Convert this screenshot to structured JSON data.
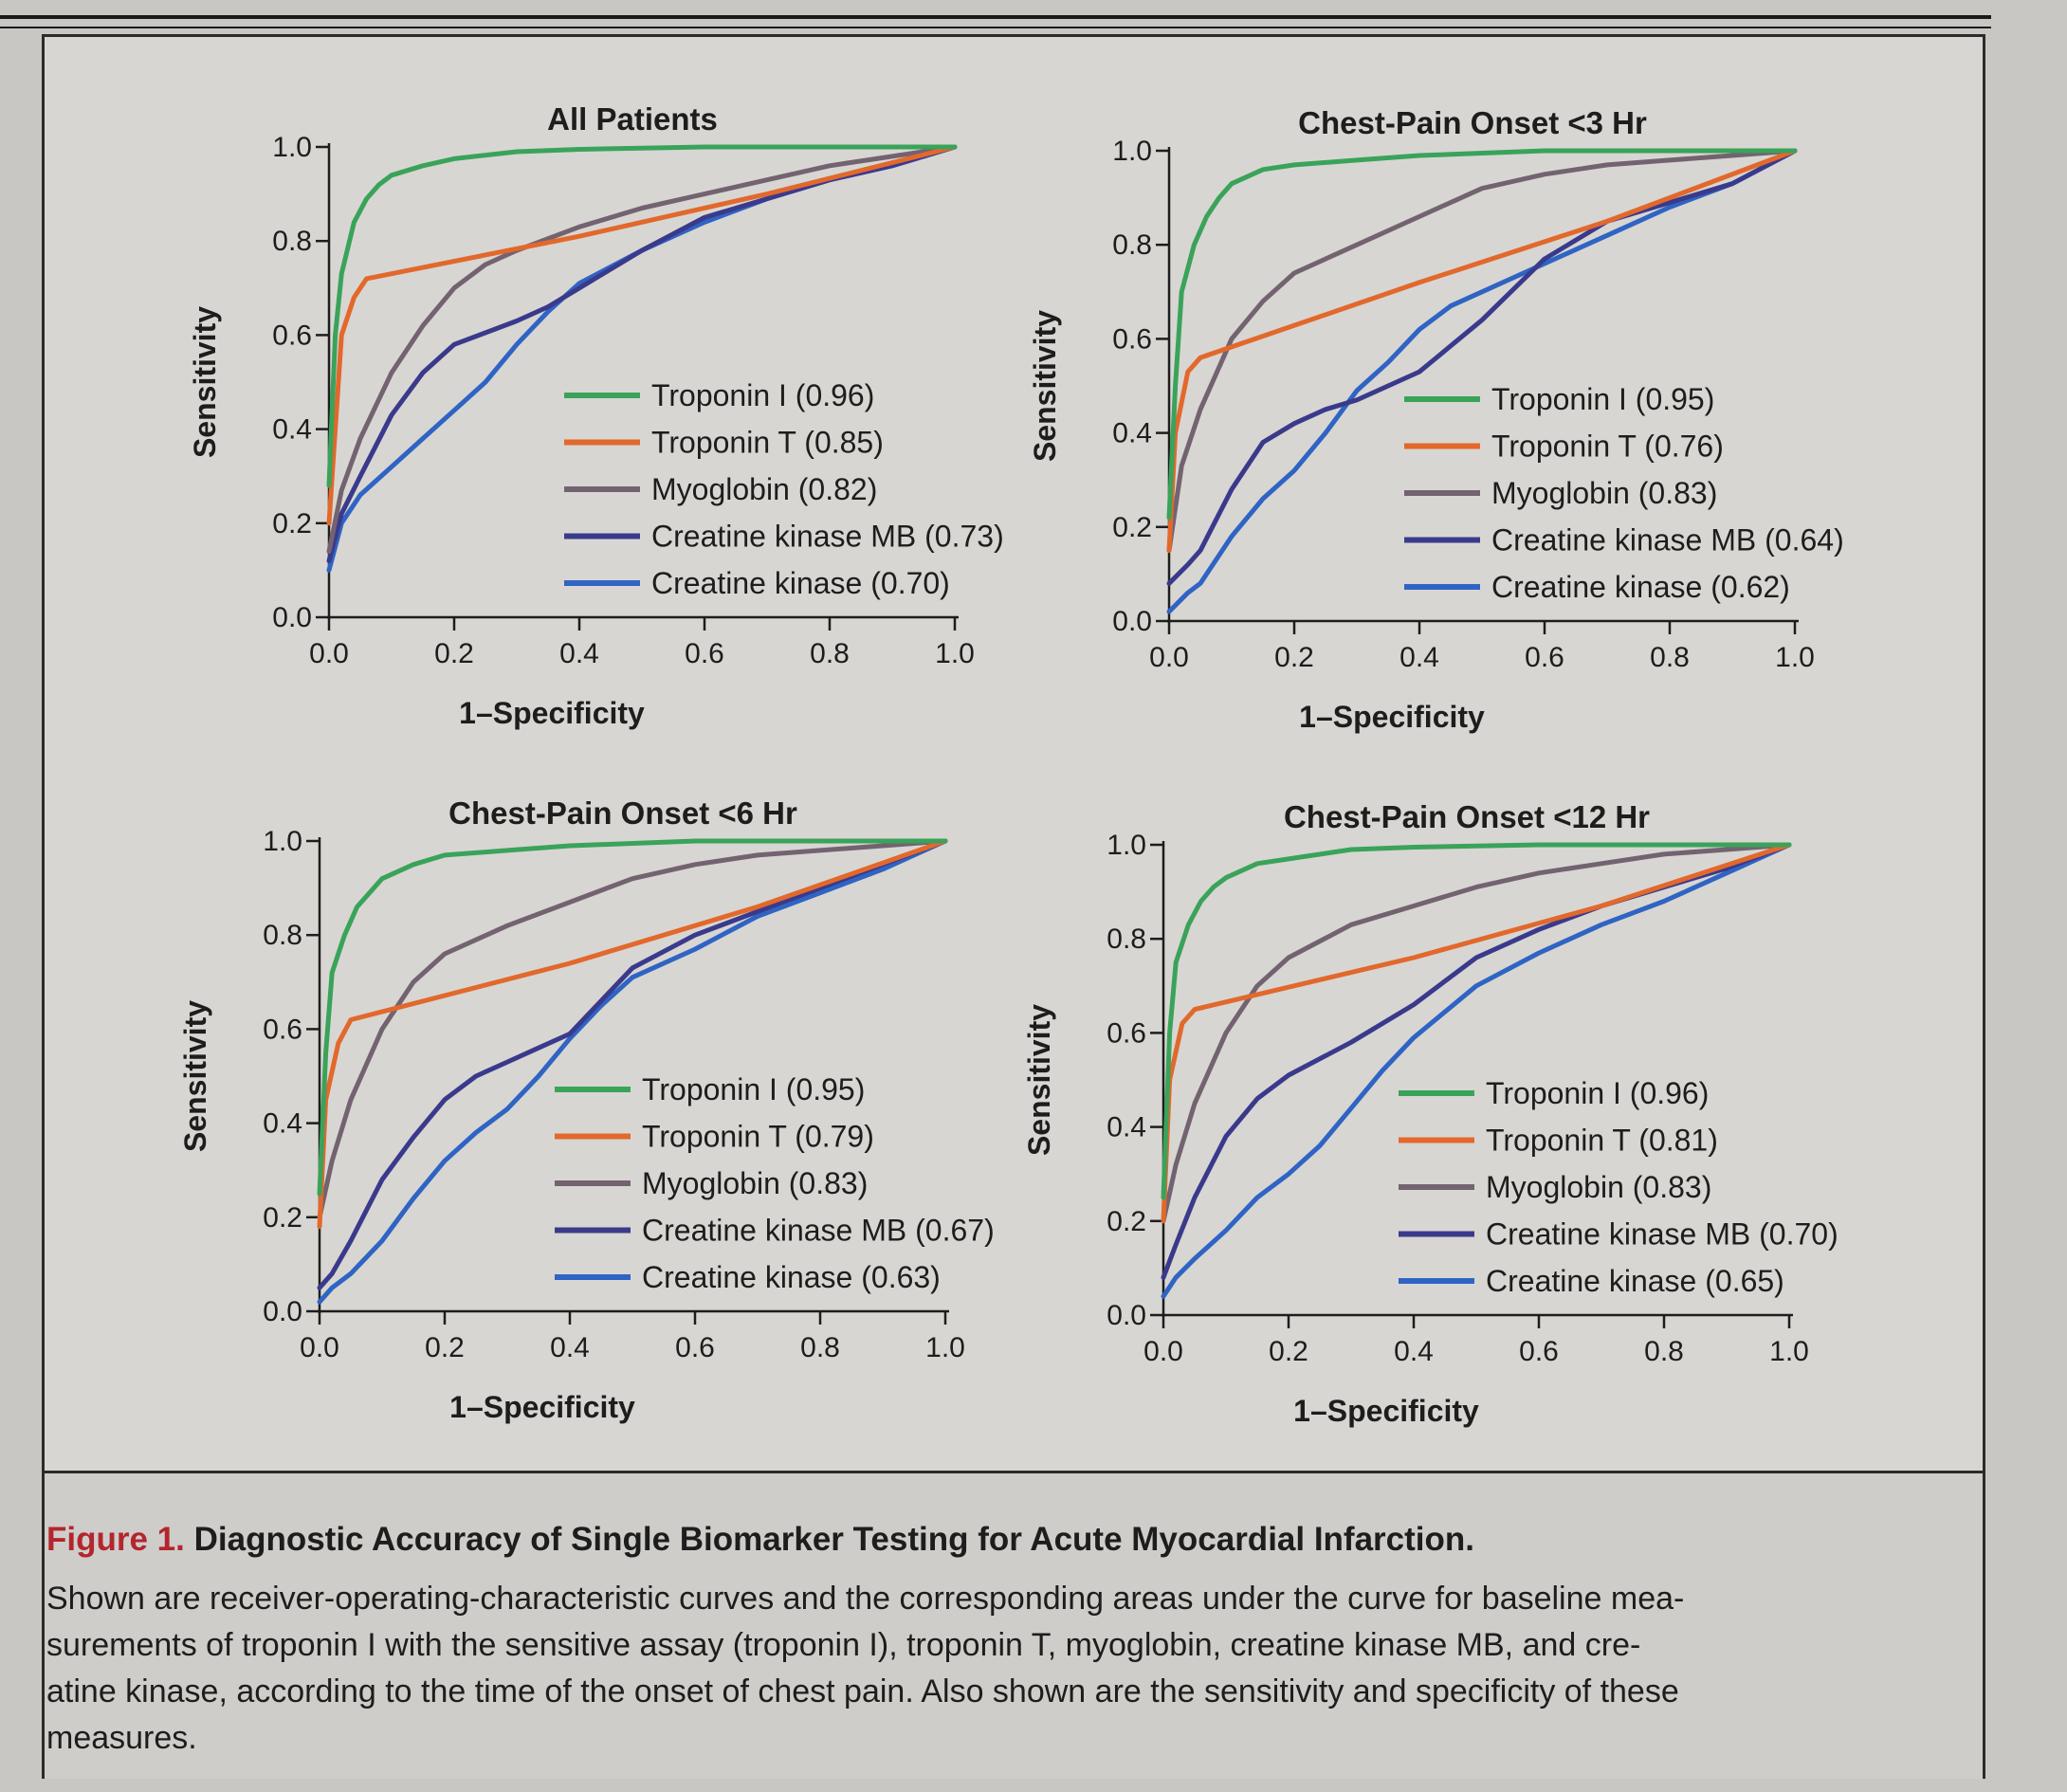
{
  "caption": {
    "figure_label": "Figure 1.",
    "title": "Diagnostic Accuracy of Single Biomarker Testing for Acute Myocardial Infarction.",
    "lines": [
      "Shown are receiver-operating-characteristic curves and the corresponding areas under the curve for baseline mea-",
      "surements of troponin I with the sensitive assay (troponin I), troponin T, myoglobin, creatine kinase MB, and cre-",
      "atine kinase, according to the time of the onset of chest pain. Also shown are the sensitivity and specificity of these",
      "measures."
    ]
  },
  "colors": {
    "troponin_i": "#3aa35a",
    "troponin_t": "#e2682c",
    "myoglobin": "#736370",
    "ck_mb": "#3a3a8c",
    "ck": "#2f64c4"
  },
  "chart_data": [
    {
      "type": "line",
      "title": "All Patients",
      "xlabel": "1–Specificity",
      "ylabel": "Sensitivity",
      "xlim": [
        0,
        1
      ],
      "ylim": [
        0,
        1
      ],
      "xticks": [
        "0.0",
        "0.2",
        "0.4",
        "0.6",
        "0.8",
        "1.0"
      ],
      "yticks": [
        "0.0",
        "0.2",
        "0.4",
        "0.6",
        "0.8",
        "1.0"
      ],
      "legend_position": "lower-right",
      "series": [
        {
          "key": "troponin_i",
          "name": "Troponin I (0.96)",
          "x": [
            0,
            0.01,
            0.02,
            0.04,
            0.06,
            0.08,
            0.1,
            0.15,
            0.2,
            0.3,
            0.4,
            0.6,
            0.8,
            1.0
          ],
          "y": [
            0.28,
            0.6,
            0.73,
            0.84,
            0.89,
            0.92,
            0.94,
            0.96,
            0.975,
            0.99,
            0.995,
            1.0,
            1.0,
            1.0
          ]
        },
        {
          "key": "troponin_t",
          "name": "Troponin T (0.85)",
          "x": [
            0,
            0.02,
            0.04,
            0.06,
            0.4,
            0.7,
            1.0
          ],
          "y": [
            0.2,
            0.6,
            0.68,
            0.72,
            0.81,
            0.9,
            1.0
          ]
        },
        {
          "key": "myoglobin",
          "name": "Myoglobin (0.82)",
          "x": [
            0,
            0.02,
            0.05,
            0.1,
            0.15,
            0.2,
            0.25,
            0.3,
            0.4,
            0.5,
            0.6,
            0.7,
            0.8,
            0.9,
            1.0
          ],
          "y": [
            0.14,
            0.27,
            0.38,
            0.52,
            0.62,
            0.7,
            0.75,
            0.78,
            0.83,
            0.87,
            0.9,
            0.93,
            0.96,
            0.98,
            1.0
          ]
        },
        {
          "key": "ck_mb",
          "name": "Creatine kinase MB (0.73)",
          "x": [
            0,
            0.02,
            0.05,
            0.1,
            0.15,
            0.2,
            0.3,
            0.35,
            0.4,
            0.5,
            0.6,
            0.7,
            0.8,
            0.9,
            1.0
          ],
          "y": [
            0.12,
            0.22,
            0.3,
            0.43,
            0.52,
            0.58,
            0.63,
            0.66,
            0.7,
            0.78,
            0.85,
            0.89,
            0.93,
            0.96,
            1.0
          ]
        },
        {
          "key": "ck",
          "name": "Creatine kinase (0.70)",
          "x": [
            0,
            0.02,
            0.05,
            0.1,
            0.15,
            0.2,
            0.25,
            0.3,
            0.35,
            0.4,
            0.5,
            0.6,
            0.7,
            0.8,
            0.9,
            1.0
          ],
          "y": [
            0.1,
            0.2,
            0.26,
            0.32,
            0.38,
            0.44,
            0.5,
            0.58,
            0.65,
            0.71,
            0.78,
            0.84,
            0.89,
            0.93,
            0.96,
            1.0
          ]
        }
      ]
    },
    {
      "type": "line",
      "title": "Chest-Pain Onset <3 Hr",
      "xlabel": "1–Specificity",
      "ylabel": "Sensitivity",
      "xlim": [
        0,
        1
      ],
      "ylim": [
        0,
        1
      ],
      "xticks": [
        "0.0",
        "0.2",
        "0.4",
        "0.6",
        "0.8",
        "1.0"
      ],
      "yticks": [
        "0.0",
        "0.2",
        "0.4",
        "0.6",
        "0.8",
        "1.0"
      ],
      "legend_position": "lower-right",
      "series": [
        {
          "key": "troponin_i",
          "name": "Troponin I (0.95)",
          "x": [
            0,
            0.01,
            0.02,
            0.04,
            0.06,
            0.08,
            0.1,
            0.15,
            0.2,
            0.3,
            0.4,
            0.6,
            0.8,
            1.0
          ],
          "y": [
            0.22,
            0.5,
            0.7,
            0.8,
            0.86,
            0.9,
            0.93,
            0.96,
            0.97,
            0.98,
            0.99,
            1.0,
            1.0,
            1.0
          ]
        },
        {
          "key": "troponin_t",
          "name": "Troponin T (0.76)",
          "x": [
            0,
            0.01,
            0.03,
            0.05,
            0.4,
            0.7,
            1.0
          ],
          "y": [
            0.15,
            0.4,
            0.53,
            0.56,
            0.72,
            0.85,
            1.0
          ]
        },
        {
          "key": "myoglobin",
          "name": "Myoglobin (0.83)",
          "x": [
            0,
            0.02,
            0.05,
            0.1,
            0.15,
            0.2,
            0.3,
            0.4,
            0.5,
            0.6,
            0.7,
            0.8,
            0.9,
            1.0
          ],
          "y": [
            0.15,
            0.33,
            0.45,
            0.6,
            0.68,
            0.74,
            0.8,
            0.86,
            0.92,
            0.95,
            0.97,
            0.98,
            0.99,
            1.0
          ]
        },
        {
          "key": "ck_mb",
          "name": "Creatine kinase MB (0.64)",
          "x": [
            0,
            0.03,
            0.05,
            0.1,
            0.15,
            0.2,
            0.25,
            0.3,
            0.35,
            0.4,
            0.5,
            0.6,
            0.7,
            0.8,
            0.9,
            1.0
          ],
          "y": [
            0.08,
            0.12,
            0.15,
            0.28,
            0.38,
            0.42,
            0.45,
            0.47,
            0.5,
            0.53,
            0.64,
            0.77,
            0.85,
            0.89,
            0.93,
            1.0
          ]
        },
        {
          "key": "ck",
          "name": "Creatine kinase (0.62)",
          "x": [
            0,
            0.03,
            0.05,
            0.1,
            0.15,
            0.2,
            0.25,
            0.3,
            0.35,
            0.4,
            0.45,
            0.5,
            0.6,
            0.7,
            0.8,
            0.9,
            1.0
          ],
          "y": [
            0.02,
            0.06,
            0.08,
            0.18,
            0.26,
            0.32,
            0.4,
            0.49,
            0.55,
            0.62,
            0.67,
            0.7,
            0.76,
            0.82,
            0.88,
            0.93,
            1.0
          ]
        }
      ]
    },
    {
      "type": "line",
      "title": "Chest-Pain Onset <6 Hr",
      "xlabel": "1–Specificity",
      "ylabel": "Sensitivity",
      "xlim": [
        0,
        1
      ],
      "ylim": [
        0,
        1
      ],
      "xticks": [
        "0.0",
        "0.2",
        "0.4",
        "0.6",
        "0.8",
        "1.0"
      ],
      "yticks": [
        "0.0",
        "0.2",
        "0.4",
        "0.6",
        "0.8",
        "1.0"
      ],
      "legend_position": "lower-right",
      "series": [
        {
          "key": "troponin_i",
          "name": "Troponin I (0.95)",
          "x": [
            0,
            0.01,
            0.02,
            0.04,
            0.06,
            0.08,
            0.1,
            0.15,
            0.2,
            0.3,
            0.4,
            0.6,
            0.8,
            1.0
          ],
          "y": [
            0.25,
            0.55,
            0.72,
            0.8,
            0.86,
            0.89,
            0.92,
            0.95,
            0.97,
            0.98,
            0.99,
            1.0,
            1.0,
            1.0
          ]
        },
        {
          "key": "troponin_t",
          "name": "Troponin T (0.79)",
          "x": [
            0,
            0.01,
            0.03,
            0.05,
            0.4,
            0.7,
            1.0
          ],
          "y": [
            0.18,
            0.45,
            0.57,
            0.62,
            0.74,
            0.86,
            1.0
          ]
        },
        {
          "key": "myoglobin",
          "name": "Myoglobin (0.83)",
          "x": [
            0,
            0.02,
            0.05,
            0.1,
            0.15,
            0.2,
            0.3,
            0.4,
            0.5,
            0.6,
            0.7,
            0.8,
            0.9,
            1.0
          ],
          "y": [
            0.2,
            0.32,
            0.45,
            0.6,
            0.7,
            0.76,
            0.82,
            0.87,
            0.92,
            0.95,
            0.97,
            0.98,
            0.99,
            1.0
          ]
        },
        {
          "key": "ck_mb",
          "name": "Creatine kinase MB (0.67)",
          "x": [
            0,
            0.02,
            0.05,
            0.1,
            0.15,
            0.2,
            0.25,
            0.3,
            0.35,
            0.4,
            0.45,
            0.5,
            0.6,
            0.7,
            0.8,
            0.9,
            1.0
          ],
          "y": [
            0.05,
            0.08,
            0.15,
            0.28,
            0.37,
            0.45,
            0.5,
            0.53,
            0.56,
            0.59,
            0.66,
            0.73,
            0.8,
            0.85,
            0.9,
            0.95,
            1.0
          ]
        },
        {
          "key": "ck",
          "name": "Creatine kinase (0.63)",
          "x": [
            0,
            0.02,
            0.05,
            0.1,
            0.15,
            0.2,
            0.25,
            0.3,
            0.35,
            0.4,
            0.45,
            0.5,
            0.6,
            0.7,
            0.8,
            0.9,
            1.0
          ],
          "y": [
            0.02,
            0.05,
            0.08,
            0.15,
            0.24,
            0.32,
            0.38,
            0.43,
            0.5,
            0.58,
            0.65,
            0.71,
            0.77,
            0.84,
            0.89,
            0.94,
            1.0
          ]
        }
      ]
    },
    {
      "type": "line",
      "title": "Chest-Pain Onset <12 Hr",
      "xlabel": "1–Specificity",
      "ylabel": "Sensitivity",
      "xlim": [
        0,
        1
      ],
      "ylim": [
        0,
        1
      ],
      "xticks": [
        "0.0",
        "0.2",
        "0.4",
        "0.6",
        "0.8",
        "1.0"
      ],
      "yticks": [
        "0.0",
        "0.2",
        "0.4",
        "0.6",
        "0.8",
        "1.0"
      ],
      "legend_position": "lower-right",
      "series": [
        {
          "key": "troponin_i",
          "name": "Troponin I (0.96)",
          "x": [
            0,
            0.01,
            0.02,
            0.04,
            0.06,
            0.08,
            0.1,
            0.15,
            0.2,
            0.3,
            0.4,
            0.6,
            0.8,
            1.0
          ],
          "y": [
            0.25,
            0.6,
            0.75,
            0.83,
            0.88,
            0.91,
            0.93,
            0.96,
            0.97,
            0.99,
            0.995,
            1.0,
            1.0,
            1.0
          ]
        },
        {
          "key": "troponin_t",
          "name": "Troponin T (0.81)",
          "x": [
            0,
            0.01,
            0.03,
            0.05,
            0.4,
            0.7,
            1.0
          ],
          "y": [
            0.2,
            0.5,
            0.62,
            0.65,
            0.76,
            0.87,
            1.0
          ]
        },
        {
          "key": "myoglobin",
          "name": "Myoglobin (0.83)",
          "x": [
            0,
            0.02,
            0.05,
            0.1,
            0.15,
            0.2,
            0.3,
            0.4,
            0.5,
            0.6,
            0.7,
            0.8,
            0.9,
            1.0
          ],
          "y": [
            0.2,
            0.32,
            0.45,
            0.6,
            0.7,
            0.76,
            0.83,
            0.87,
            0.91,
            0.94,
            0.96,
            0.98,
            0.99,
            1.0
          ]
        },
        {
          "key": "ck_mb",
          "name": "Creatine kinase MB (0.70)",
          "x": [
            0,
            0.02,
            0.05,
            0.1,
            0.15,
            0.2,
            0.3,
            0.4,
            0.5,
            0.6,
            0.7,
            0.8,
            0.9,
            1.0
          ],
          "y": [
            0.08,
            0.15,
            0.25,
            0.38,
            0.46,
            0.51,
            0.58,
            0.66,
            0.76,
            0.82,
            0.87,
            0.91,
            0.95,
            1.0
          ]
        },
        {
          "key": "ck",
          "name": "Creatine kinase (0.65)",
          "x": [
            0,
            0.02,
            0.05,
            0.1,
            0.15,
            0.2,
            0.25,
            0.3,
            0.35,
            0.4,
            0.5,
            0.6,
            0.7,
            0.8,
            0.9,
            1.0
          ],
          "y": [
            0.04,
            0.08,
            0.12,
            0.18,
            0.25,
            0.3,
            0.36,
            0.44,
            0.52,
            0.59,
            0.7,
            0.77,
            0.83,
            0.88,
            0.94,
            1.0
          ]
        }
      ]
    }
  ]
}
